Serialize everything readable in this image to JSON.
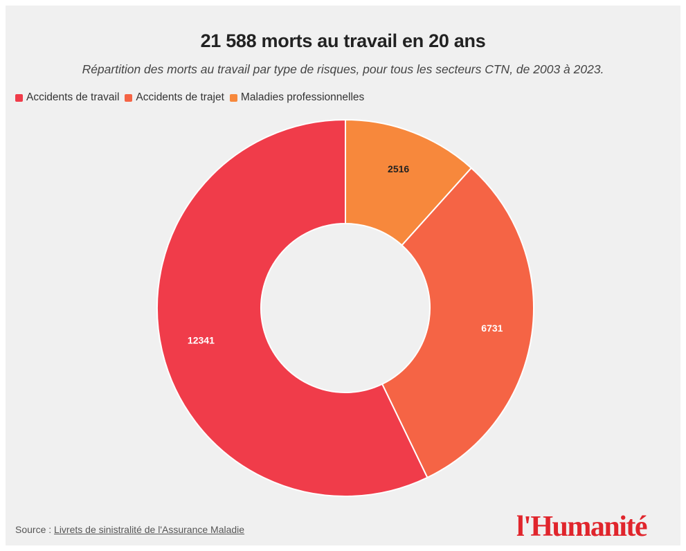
{
  "title": "21 588 morts au travail en 20 ans",
  "subtitle": "Répartition des morts au travail par type de risques, pour tous les secteurs CTN, de 2003 à 2023.",
  "chart_data": {
    "type": "pie",
    "donut": true,
    "legend_position": "top-left",
    "slices": [
      {
        "label": "Accidents de travail",
        "value": 12341,
        "color": "#f03c4a",
        "label_color": "#ffffff"
      },
      {
        "label": "Accidents de trajet",
        "value": 6731,
        "color": "#f56445",
        "label_color": "#ffffff"
      },
      {
        "label": "Maladies professionnelles",
        "value": 2516,
        "color": "#f7883c",
        "label_color": "#222222"
      }
    ]
  },
  "source": {
    "prefix": "Source : ",
    "link_text": "Livrets de sinistralité de l'Assurance Maladie"
  },
  "brand": {
    "logo_text": "l'Humanité",
    "color": "#e0252c"
  }
}
